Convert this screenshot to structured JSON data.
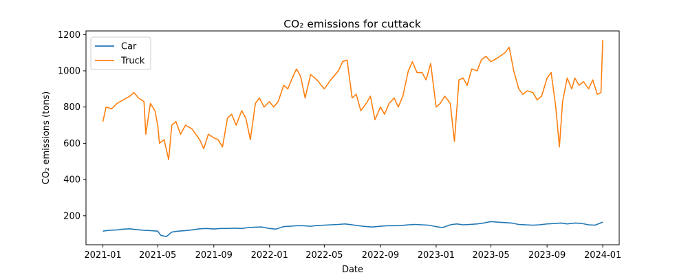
{
  "chart_data": {
    "type": "line",
    "title": "CO₂ emissions for cuttack",
    "xlabel": "Date",
    "ylabel": "CO₂ emissions (tons)",
    "x_type": "date",
    "xlim": [
      "2020-11-25",
      "2024-02-06"
    ],
    "ylim": [
      40,
      1220
    ],
    "xticks": [
      "2021-01-01",
      "2021-05-01",
      "2021-09-01",
      "2022-01-01",
      "2022-05-01",
      "2022-09-01",
      "2023-01-01",
      "2023-05-01",
      "2023-09-01",
      "2024-01-01"
    ],
    "xtick_labels": [
      "2021-01",
      "2021-05",
      "2021-09",
      "2022-01",
      "2022-05",
      "2022-09",
      "2023-01",
      "2023-05",
      "2023-09",
      "2024-01"
    ],
    "yticks": [
      200,
      400,
      600,
      800,
      1000,
      1200
    ],
    "ytick_labels": [
      "200",
      "400",
      "600",
      "800",
      "1000",
      "1200"
    ],
    "legend_position": "top-left",
    "grid": false,
    "series": [
      {
        "name": "Car",
        "color": "#1f77b4",
        "points": [
          [
            "2021-01-01",
            115
          ],
          [
            "2021-01-15",
            120
          ],
          [
            "2021-02-01",
            122
          ],
          [
            "2021-02-15",
            126
          ],
          [
            "2021-03-01",
            128
          ],
          [
            "2021-03-15",
            124
          ],
          [
            "2021-04-01",
            120
          ],
          [
            "2021-04-15",
            118
          ],
          [
            "2021-05-01",
            115
          ],
          [
            "2021-05-08",
            92
          ],
          [
            "2021-05-20",
            85
          ],
          [
            "2021-06-01",
            110
          ],
          [
            "2021-06-15",
            115
          ],
          [
            "2021-07-01",
            118
          ],
          [
            "2021-07-15",
            122
          ],
          [
            "2021-08-01",
            128
          ],
          [
            "2021-08-15",
            130
          ],
          [
            "2021-09-01",
            127
          ],
          [
            "2021-09-15",
            130
          ],
          [
            "2021-10-01",
            130
          ],
          [
            "2021-10-15",
            132
          ],
          [
            "2021-11-01",
            130
          ],
          [
            "2021-11-15",
            135
          ],
          [
            "2021-12-01",
            137
          ],
          [
            "2021-12-15",
            138
          ],
          [
            "2022-01-01",
            130
          ],
          [
            "2022-01-15",
            126
          ],
          [
            "2022-02-01",
            140
          ],
          [
            "2022-02-15",
            142
          ],
          [
            "2022-03-01",
            145
          ],
          [
            "2022-03-15",
            145
          ],
          [
            "2022-04-01",
            142
          ],
          [
            "2022-04-15",
            146
          ],
          [
            "2022-05-01",
            148
          ],
          [
            "2022-05-15",
            150
          ],
          [
            "2022-06-01",
            152
          ],
          [
            "2022-06-15",
            155
          ],
          [
            "2022-07-01",
            150
          ],
          [
            "2022-07-15",
            145
          ],
          [
            "2022-08-01",
            140
          ],
          [
            "2022-08-15",
            138
          ],
          [
            "2022-09-01",
            142
          ],
          [
            "2022-09-15",
            145
          ],
          [
            "2022-10-01",
            145
          ],
          [
            "2022-10-15",
            146
          ],
          [
            "2022-11-01",
            150
          ],
          [
            "2022-11-15",
            152
          ],
          [
            "2022-12-01",
            150
          ],
          [
            "2022-12-15",
            148
          ],
          [
            "2023-01-01",
            140
          ],
          [
            "2023-01-15",
            135
          ],
          [
            "2023-02-01",
            150
          ],
          [
            "2023-02-15",
            155
          ],
          [
            "2023-03-01",
            150
          ],
          [
            "2023-03-15",
            152
          ],
          [
            "2023-04-01",
            155
          ],
          [
            "2023-04-15",
            160
          ],
          [
            "2023-05-01",
            168
          ],
          [
            "2023-05-15",
            165
          ],
          [
            "2023-06-01",
            162
          ],
          [
            "2023-06-15",
            160
          ],
          [
            "2023-07-01",
            152
          ],
          [
            "2023-07-15",
            150
          ],
          [
            "2023-08-01",
            148
          ],
          [
            "2023-08-15",
            150
          ],
          [
            "2023-09-01",
            155
          ],
          [
            "2023-09-15",
            157
          ],
          [
            "2023-10-01",
            160
          ],
          [
            "2023-10-15",
            155
          ],
          [
            "2023-11-01",
            160
          ],
          [
            "2023-11-15",
            158
          ],
          [
            "2023-12-01",
            150
          ],
          [
            "2023-12-15",
            148
          ],
          [
            "2024-01-01",
            165
          ]
        ]
      },
      {
        "name": "Truck",
        "color": "#ff7f0e",
        "points": [
          [
            "2021-01-01",
            720
          ],
          [
            "2021-01-08",
            800
          ],
          [
            "2021-01-20",
            790
          ],
          [
            "2021-02-01",
            820
          ],
          [
            "2021-02-15",
            840
          ],
          [
            "2021-03-01",
            860
          ],
          [
            "2021-03-10",
            880
          ],
          [
            "2021-03-20",
            850
          ],
          [
            "2021-04-01",
            830
          ],
          [
            "2021-04-05",
            650
          ],
          [
            "2021-04-15",
            820
          ],
          [
            "2021-04-25",
            780
          ],
          [
            "2021-05-01",
            700
          ],
          [
            "2021-05-05",
            600
          ],
          [
            "2021-05-15",
            620
          ],
          [
            "2021-05-25",
            510
          ],
          [
            "2021-06-01",
            700
          ],
          [
            "2021-06-10",
            720
          ],
          [
            "2021-06-20",
            650
          ],
          [
            "2021-07-01",
            700
          ],
          [
            "2021-07-15",
            680
          ],
          [
            "2021-08-01",
            620
          ],
          [
            "2021-08-10",
            570
          ],
          [
            "2021-08-20",
            650
          ],
          [
            "2021-09-01",
            630
          ],
          [
            "2021-09-10",
            620
          ],
          [
            "2021-09-20",
            580
          ],
          [
            "2021-10-01",
            740
          ],
          [
            "2021-10-10",
            760
          ],
          [
            "2021-10-20",
            700
          ],
          [
            "2021-11-01",
            780
          ],
          [
            "2021-11-10",
            740
          ],
          [
            "2021-11-20",
            620
          ],
          [
            "2021-12-01",
            820
          ],
          [
            "2021-12-10",
            850
          ],
          [
            "2021-12-20",
            800
          ],
          [
            "2022-01-01",
            830
          ],
          [
            "2022-01-10",
            800
          ],
          [
            "2022-01-20",
            830
          ],
          [
            "2022-02-01",
            920
          ],
          [
            "2022-02-10",
            900
          ],
          [
            "2022-02-20",
            960
          ],
          [
            "2022-03-01",
            1010
          ],
          [
            "2022-03-10",
            970
          ],
          [
            "2022-03-20",
            850
          ],
          [
            "2022-04-01",
            980
          ],
          [
            "2022-04-15",
            950
          ],
          [
            "2022-05-01",
            900
          ],
          [
            "2022-05-15",
            950
          ],
          [
            "2022-06-01",
            1000
          ],
          [
            "2022-06-10",
            1050
          ],
          [
            "2022-06-20",
            1060
          ],
          [
            "2022-07-01",
            850
          ],
          [
            "2022-07-10",
            870
          ],
          [
            "2022-07-20",
            780
          ],
          [
            "2022-08-01",
            820
          ],
          [
            "2022-08-10",
            860
          ],
          [
            "2022-08-20",
            730
          ],
          [
            "2022-09-01",
            800
          ],
          [
            "2022-09-10",
            760
          ],
          [
            "2022-09-20",
            820
          ],
          [
            "2022-10-01",
            850
          ],
          [
            "2022-10-10",
            800
          ],
          [
            "2022-10-20",
            860
          ],
          [
            "2022-11-01",
            1000
          ],
          [
            "2022-11-10",
            1050
          ],
          [
            "2022-11-20",
            990
          ],
          [
            "2022-12-01",
            990
          ],
          [
            "2022-12-10",
            950
          ],
          [
            "2022-12-20",
            1040
          ],
          [
            "2023-01-01",
            800
          ],
          [
            "2023-01-10",
            820
          ],
          [
            "2023-01-20",
            860
          ],
          [
            "2023-02-01",
            820
          ],
          [
            "2023-02-10",
            610
          ],
          [
            "2023-02-20",
            950
          ],
          [
            "2023-03-01",
            960
          ],
          [
            "2023-03-10",
            920
          ],
          [
            "2023-03-20",
            1010
          ],
          [
            "2023-04-01",
            1000
          ],
          [
            "2023-04-10",
            1060
          ],
          [
            "2023-04-20",
            1080
          ],
          [
            "2023-05-01",
            1050
          ],
          [
            "2023-05-15",
            1070
          ],
          [
            "2023-06-01",
            1100
          ],
          [
            "2023-06-10",
            1130
          ],
          [
            "2023-06-20",
            1000
          ],
          [
            "2023-07-01",
            900
          ],
          [
            "2023-07-10",
            870
          ],
          [
            "2023-07-20",
            890
          ],
          [
            "2023-08-01",
            880
          ],
          [
            "2023-08-10",
            840
          ],
          [
            "2023-08-20",
            860
          ],
          [
            "2023-09-01",
            960
          ],
          [
            "2023-09-10",
            990
          ],
          [
            "2023-09-20",
            800
          ],
          [
            "2023-09-28",
            580
          ],
          [
            "2023-10-05",
            830
          ],
          [
            "2023-10-15",
            960
          ],
          [
            "2023-10-25",
            900
          ],
          [
            "2023-11-01",
            960
          ],
          [
            "2023-11-10",
            920
          ],
          [
            "2023-11-20",
            940
          ],
          [
            "2023-12-01",
            900
          ],
          [
            "2023-12-10",
            950
          ],
          [
            "2023-12-20",
            870
          ],
          [
            "2023-12-28",
            880
          ],
          [
            "2024-01-01",
            1170
          ]
        ]
      }
    ]
  }
}
